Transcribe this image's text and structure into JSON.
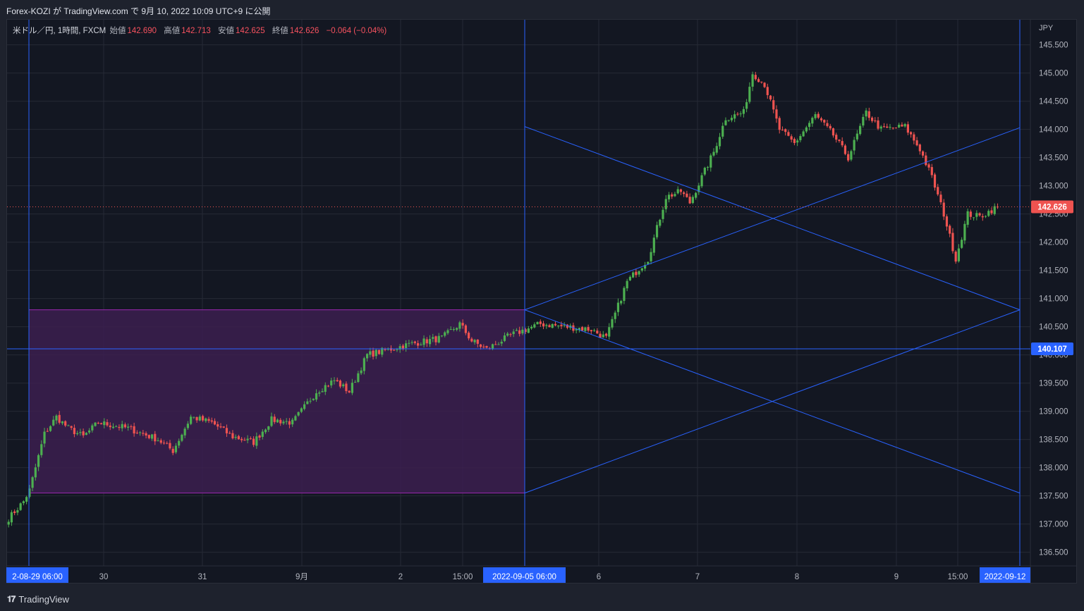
{
  "header": {
    "attribution": "Forex-KOZI が TradingView.com で 9月 10, 2022 10:09 UTC+9 に公開"
  },
  "legend": {
    "symbol": "米ドル／円, 1時間, FXCM",
    "open_label": "始値",
    "open_value": "142.690",
    "high_label": "高値",
    "high_value": "142.713",
    "low_label": "安値",
    "low_value": "142.625",
    "close_label": "終値",
    "close_value": "142.626",
    "change": "−0.064 (−0.04%)"
  },
  "price_axis": {
    "currency": "JPY",
    "ticks": [
      "145.500",
      "145.000",
      "144.500",
      "144.000",
      "143.500",
      "143.000",
      "142.500",
      "142.000",
      "141.500",
      "141.000",
      "140.500",
      "140.000",
      "139.500",
      "139.000",
      "138.500",
      "138.000",
      "137.500",
      "137.000",
      "136.500"
    ],
    "last_price_label": "142.626",
    "hline_label": "140.107"
  },
  "time_axis": {
    "ticks": [
      "30",
      "31",
      "9月",
      "2",
      "15:00",
      "6",
      "7",
      "8",
      "9",
      "15:00"
    ],
    "marker_left": "2-08-29   06:00",
    "marker_mid": "2022-09-05   06:00",
    "marker_right": "2022-09-12"
  },
  "footer": {
    "brand": "TradingView"
  },
  "colors": {
    "background": "#131722",
    "grid": "#262a35",
    "up": "#26a69a",
    "up_bright": "#4caf50",
    "down": "#ef5350",
    "drawing": "#2962ff",
    "rect_fill": "#3c1f4f",
    "rect_border": "#9c27b0"
  },
  "chart_data": {
    "type": "candlestick",
    "symbol": "USDJPY",
    "timeframe": "1h",
    "ylim": [
      136.3,
      145.8
    ],
    "last_close": 142.626,
    "horizontal_line": 140.107,
    "box": {
      "from": "2022-08-29 06:00",
      "to": "2022-09-05 06:00",
      "top": 140.8,
      "bottom": 137.55
    },
    "path_keypoints": [
      [
        0,
        137.1
      ],
      [
        5,
        137.4
      ],
      [
        7,
        137.6
      ],
      [
        12,
        138.6
      ],
      [
        16,
        138.9
      ],
      [
        20,
        138.7
      ],
      [
        25,
        138.55
      ],
      [
        30,
        138.8
      ],
      [
        40,
        138.7
      ],
      [
        50,
        138.5
      ],
      [
        55,
        138.3
      ],
      [
        61,
        138.9
      ],
      [
        68,
        138.8
      ],
      [
        75,
        138.55
      ],
      [
        82,
        138.45
      ],
      [
        88,
        138.85
      ],
      [
        95,
        138.8
      ],
      [
        103,
        139.35
      ],
      [
        109,
        139.55
      ],
      [
        114,
        139.35
      ],
      [
        120,
        140.0
      ],
      [
        135,
        140.2
      ],
      [
        145,
        140.3
      ],
      [
        151,
        140.55
      ],
      [
        155,
        140.25
      ],
      [
        160,
        140.1
      ],
      [
        168,
        140.35
      ],
      [
        178,
        140.55
      ],
      [
        195,
        140.45
      ],
      [
        200,
        140.3
      ],
      [
        207,
        141.3
      ],
      [
        214,
        141.7
      ],
      [
        220,
        142.8
      ],
      [
        225,
        142.9
      ],
      [
        228,
        142.7
      ],
      [
        236,
        143.6
      ],
      [
        240,
        144.2
      ],
      [
        246,
        144.3
      ],
      [
        249,
        145.0
      ],
      [
        253,
        144.8
      ],
      [
        258,
        144.0
      ],
      [
        263,
        143.75
      ],
      [
        270,
        144.25
      ],
      [
        276,
        143.9
      ],
      [
        281,
        143.5
      ],
      [
        287,
        144.3
      ],
      [
        292,
        144.0
      ],
      [
        300,
        144.05
      ],
      [
        305,
        143.65
      ],
      [
        309,
        143.15
      ],
      [
        313,
        142.5
      ],
      [
        317,
        141.7
      ],
      [
        321,
        142.5
      ],
      [
        325,
        142.45
      ],
      [
        331,
        142.63
      ]
    ]
  }
}
